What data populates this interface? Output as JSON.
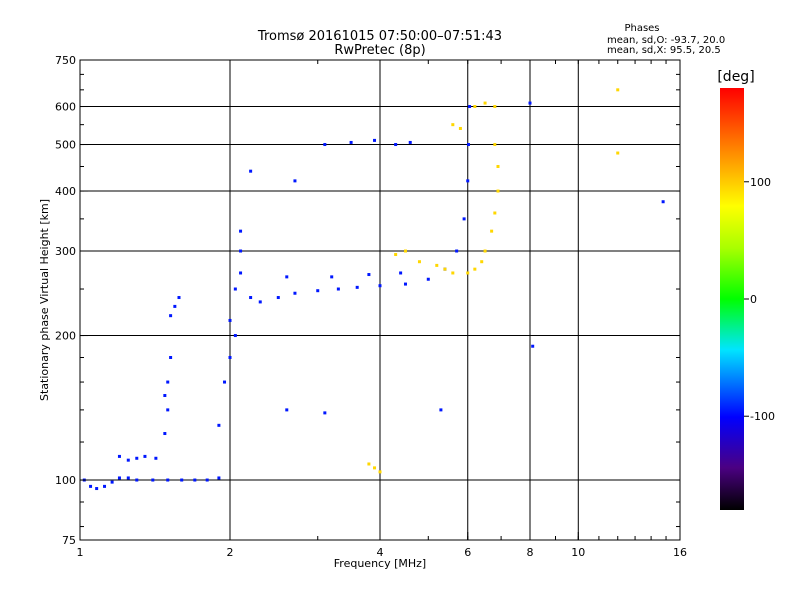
{
  "chart_data": {
    "type": "scatter",
    "title": "Tromsø 20161015 07:50:00–07:51:43",
    "subtitle": "RwPretec (8p)",
    "xlabel": "Frequency [MHz]",
    "ylabel": "Stationary phase Virtual Height [km]",
    "x_scale": "log",
    "y_scale": "log",
    "xlim": [
      1,
      16
    ],
    "ylim": [
      75,
      750
    ],
    "x_ticks": [
      1,
      2,
      4,
      6,
      8,
      10,
      16
    ],
    "y_ticks": [
      75,
      100,
      200,
      300,
      400,
      500,
      600,
      750
    ],
    "grid": true,
    "stats": {
      "heading": "Phases",
      "line_o": "mean, sd,O:  -93.7, 20.0",
      "line_x": "mean, sd,X:   95.5, 20.5"
    },
    "colorbar": {
      "label": "[deg]",
      "range": [
        -180,
        180
      ],
      "ticks": [
        100,
        0,
        -100
      ]
    },
    "series": [
      {
        "polarisation": "O",
        "color_value": -95,
        "points": [
          [
            1.02,
            100
          ],
          [
            1.05,
            97
          ],
          [
            1.08,
            96
          ],
          [
            1.12,
            97
          ],
          [
            1.16,
            99
          ],
          [
            1.2,
            101
          ],
          [
            1.25,
            101
          ],
          [
            1.3,
            100
          ],
          [
            1.4,
            100
          ],
          [
            1.5,
            100
          ],
          [
            1.6,
            100
          ],
          [
            1.7,
            100
          ],
          [
            1.8,
            100
          ],
          [
            1.9,
            101
          ],
          [
            1.2,
            112
          ],
          [
            1.25,
            110
          ],
          [
            1.3,
            111
          ],
          [
            1.35,
            112
          ],
          [
            1.42,
            111
          ],
          [
            1.48,
            125
          ],
          [
            1.5,
            140
          ],
          [
            1.48,
            150
          ],
          [
            1.5,
            160
          ],
          [
            1.52,
            180
          ],
          [
            1.52,
            220
          ],
          [
            1.55,
            230
          ],
          [
            1.58,
            240
          ],
          [
            1.9,
            130
          ],
          [
            1.95,
            160
          ],
          [
            2.0,
            180
          ],
          [
            2.05,
            200
          ],
          [
            2.0,
            215
          ],
          [
            2.05,
            250
          ],
          [
            2.1,
            270
          ],
          [
            2.1,
            300
          ],
          [
            2.1,
            330
          ],
          [
            2.2,
            240
          ],
          [
            2.3,
            235
          ],
          [
            2.5,
            240
          ],
          [
            2.7,
            245
          ],
          [
            3.0,
            248
          ],
          [
            3.3,
            250
          ],
          [
            3.6,
            252
          ],
          [
            4.0,
            254
          ],
          [
            4.5,
            256
          ],
          [
            5.0,
            262
          ],
          [
            5.4,
            275
          ],
          [
            5.7,
            300
          ],
          [
            5.9,
            350
          ],
          [
            6.0,
            420
          ],
          [
            6.02,
            500
          ],
          [
            6.05,
            600
          ],
          [
            2.6,
            265
          ],
          [
            3.2,
            265
          ],
          [
            3.8,
            268
          ],
          [
            4.4,
            270
          ],
          [
            3.1,
            500
          ],
          [
            3.5,
            505
          ],
          [
            3.9,
            510
          ],
          [
            4.3,
            500
          ],
          [
            4.6,
            505
          ],
          [
            2.2,
            440
          ],
          [
            2.7,
            420
          ],
          [
            8.0,
            610
          ],
          [
            8.1,
            190
          ],
          [
            14.8,
            380
          ],
          [
            2.6,
            140
          ],
          [
            3.1,
            138
          ],
          [
            5.3,
            140
          ]
        ]
      },
      {
        "polarisation": "X",
        "color_value": 95,
        "points": [
          [
            4.3,
            295
          ],
          [
            4.5,
            300
          ],
          [
            4.8,
            285
          ],
          [
            5.2,
            280
          ],
          [
            5.4,
            275
          ],
          [
            5.6,
            270
          ],
          [
            6.0,
            270
          ],
          [
            6.2,
            275
          ],
          [
            6.4,
            285
          ],
          [
            6.5,
            300
          ],
          [
            6.7,
            330
          ],
          [
            6.8,
            360
          ],
          [
            6.9,
            400
          ],
          [
            6.9,
            450
          ],
          [
            6.8,
            500
          ],
          [
            6.2,
            600
          ],
          [
            6.5,
            610
          ],
          [
            6.8,
            600
          ],
          [
            5.6,
            550
          ],
          [
            5.8,
            540
          ],
          [
            3.8,
            108
          ],
          [
            3.9,
            106
          ],
          [
            4.0,
            104
          ],
          [
            12.0,
            650
          ],
          [
            12.0,
            480
          ]
        ]
      }
    ]
  }
}
